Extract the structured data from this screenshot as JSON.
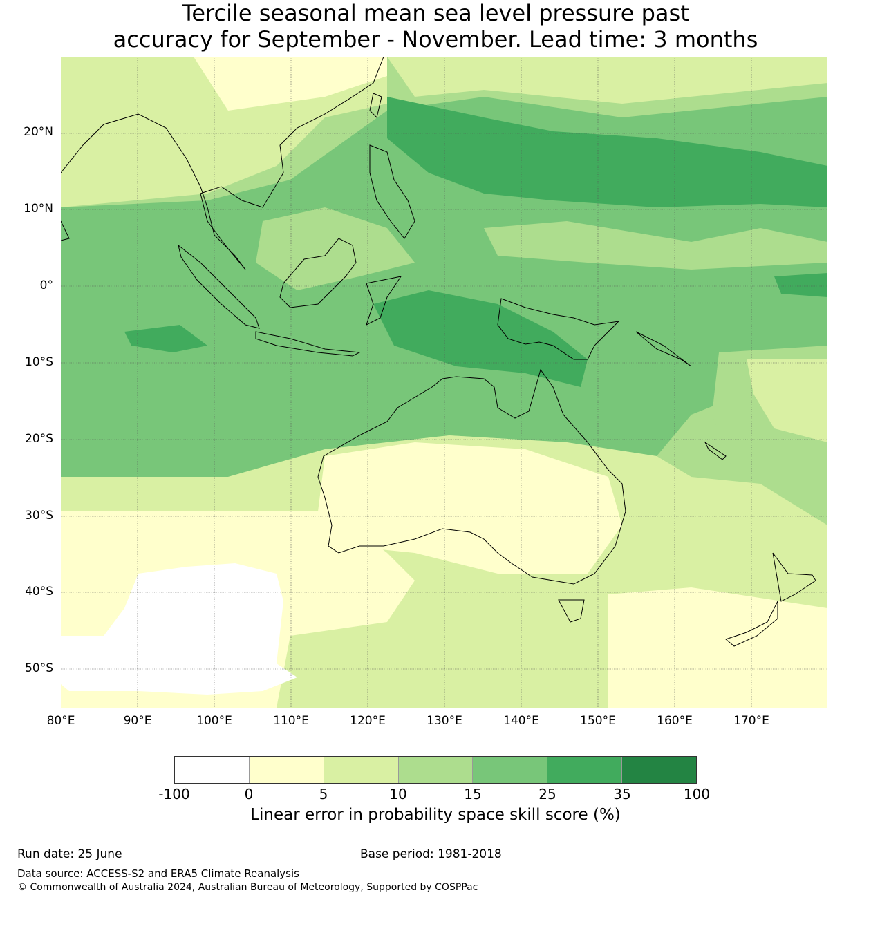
{
  "title": {
    "line1": "Tercile seasonal mean sea level pressure past",
    "line2": "accuracy for September - November. Lead time: 3 months"
  },
  "map": {
    "lat_labels": [
      "20°N",
      "10°N",
      "0°",
      "10°S",
      "20°S",
      "30°S",
      "40°S",
      "50°S"
    ],
    "lon_labels": [
      "80°E",
      "90°E",
      "100°E",
      "110°E",
      "120°E",
      "130°E",
      "140°E",
      "150°E",
      "160°E",
      "170°E"
    ],
    "grid": true
  },
  "colorbar": {
    "ticks": [
      "-100",
      "0",
      "5",
      "10",
      "15",
      "25",
      "35",
      "100"
    ],
    "colors": [
      "#ffffff",
      "#ffffcc",
      "#d9f0a3",
      "#addd8e",
      "#78c679",
      "#41ab5d",
      "#238443"
    ],
    "label": "Linear error in probability space skill score (%)"
  },
  "footer": {
    "run_date": "Run date: 25 June",
    "base_period": "Base period: 1981-2018",
    "data_source": "Data source: ACCESS-S2 and ERA5 Climate Reanalysis",
    "copyright": "© Commonwealth of Australia 2024, Australian Bureau of Meteorology, Supported by COSPPac"
  }
}
